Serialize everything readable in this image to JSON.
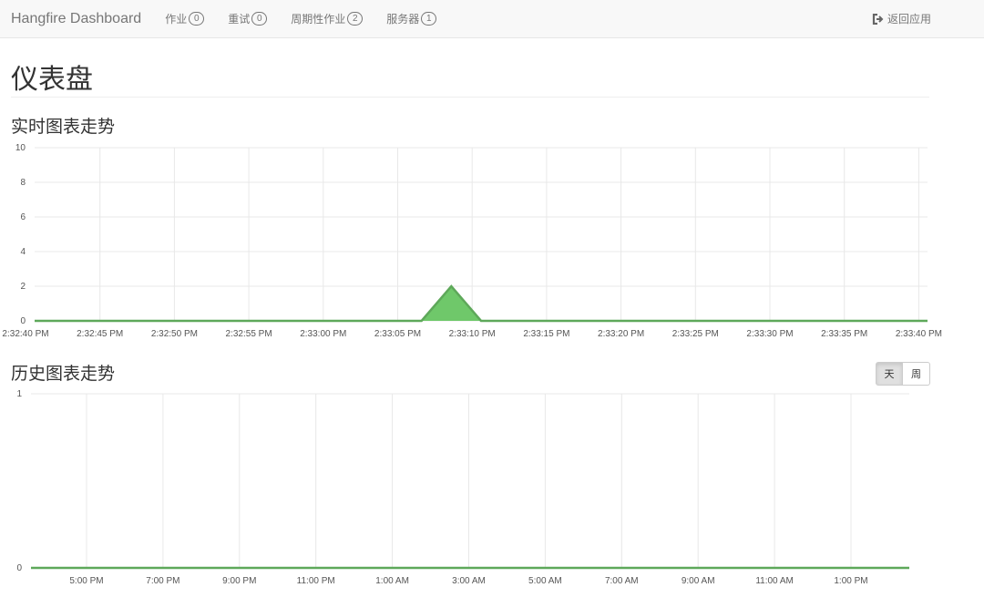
{
  "nav": {
    "brand": "Hangfire Dashboard",
    "items": [
      {
        "label": "作业",
        "count": "0"
      },
      {
        "label": "重试",
        "count": "0"
      },
      {
        "label": "周期性作业",
        "count": "2"
      },
      {
        "label": "服务器",
        "count": "1"
      }
    ],
    "back": "返回应用",
    "back_icon": "sign-out-icon"
  },
  "page": {
    "title": "仪表盘",
    "realtime_title": "实时图表走势",
    "history_title": "历史图表走势",
    "range_buttons": [
      {
        "label": "天",
        "active": true
      },
      {
        "label": "周",
        "active": false
      }
    ]
  },
  "colors": {
    "series": "#6fc86a",
    "line": "#5ea85a",
    "grid": "#e8e8e8"
  },
  "chart_data": [
    {
      "type": "area",
      "ylim": [
        0,
        10
      ],
      "yticks": [
        "0",
        "2",
        "4",
        "6",
        "8",
        "10"
      ],
      "grid": true,
      "xlim": [
        "14:32:40",
        "14:33:40"
      ],
      "xticks": [
        "2:32:40 PM",
        "2:32:45 PM",
        "2:32:50 PM",
        "2:32:55 PM",
        "2:33:00 PM",
        "2:33:05 PM",
        "2:33:10 PM",
        "2:33:15 PM",
        "2:33:20 PM",
        "2:33:25 PM",
        "2:33:30 PM",
        "2:33:35 PM",
        "2:33:40 PM"
      ],
      "points": [
        {
          "x": "14:32:40",
          "y": 0
        },
        {
          "x": "14:33:06",
          "y": 0
        },
        {
          "x": "14:33:08",
          "y": 2
        },
        {
          "x": "14:33:10",
          "y": 0
        },
        {
          "x": "14:33:40",
          "y": 0
        }
      ]
    },
    {
      "type": "area",
      "ylim": [
        0,
        1
      ],
      "yticks": [
        "0",
        "1"
      ],
      "grid": true,
      "xlim": [
        "15:33",
        "14:31"
      ],
      "xticks": [
        "5:00 PM",
        "7:00 PM",
        "9:00 PM",
        "11:00 PM",
        "1:00 AM",
        "3:00 AM",
        "5:00 AM",
        "7:00 AM",
        "9:00 AM",
        "11:00 AM",
        "1:00 PM"
      ],
      "points": [
        {
          "x": "15:33",
          "y": 0
        },
        {
          "x": "14:31",
          "y": 0
        }
      ]
    }
  ]
}
